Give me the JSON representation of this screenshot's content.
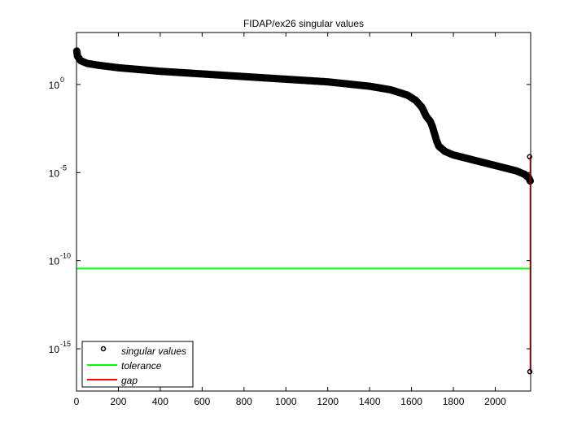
{
  "chart_data": {
    "type": "scatter",
    "title": "FIDAP/ex26 singular values",
    "xlabel": "",
    "ylabel": "",
    "xscale": "linear",
    "yscale": "log",
    "xlim": [
      0,
      2169
    ],
    "ylim_log10": [
      -17.4,
      2.95
    ],
    "xticks": [
      0,
      200,
      400,
      600,
      800,
      1000,
      1200,
      1400,
      1600,
      1800,
      2000
    ],
    "xtick_labels": [
      "0",
      "200",
      "400",
      "600",
      "800",
      "1000",
      "1200",
      "1400",
      "1600",
      "1800",
      "2000"
    ],
    "yticks_log10": [
      0,
      -5,
      -10,
      -15
    ],
    "ytick_labels": [
      {
        "base": "10",
        "exp": "0"
      },
      {
        "base": "10",
        "exp": "-5"
      },
      {
        "base": "10",
        "exp": "-10"
      },
      {
        "base": "10",
        "exp": "-15"
      }
    ],
    "grid": false,
    "legend_position": "lower left",
    "legend": [
      {
        "label": "singular values",
        "marker": "circle",
        "color": "#000000"
      },
      {
        "label": "tolerance",
        "marker": "line",
        "color": "#00ff00"
      },
      {
        "label": "gap",
        "marker": "line",
        "color": "#ff0000"
      }
    ],
    "series": [
      {
        "name": "singular values",
        "color": "#000000",
        "marker": "circle",
        "x": [
          1,
          5,
          20,
          50,
          100,
          200,
          400,
          600,
          800,
          1000,
          1200,
          1400,
          1500,
          1580,
          1620,
          1650,
          1670,
          1690,
          1700,
          1710,
          1720,
          1730,
          1760,
          1800,
          1900,
          2000,
          2100,
          2140,
          2160,
          2168,
          2169
        ],
        "log10_y": [
          1.9,
          1.6,
          1.35,
          1.2,
          1.1,
          0.95,
          0.75,
          0.6,
          0.45,
          0.3,
          0.15,
          -0.1,
          -0.3,
          -0.6,
          -0.9,
          -1.3,
          -1.8,
          -2.1,
          -2.4,
          -2.8,
          -3.2,
          -3.5,
          -3.8,
          -4.0,
          -4.3,
          -4.6,
          -4.9,
          -5.1,
          -5.3,
          -5.5,
          -16.3
        ]
      },
      {
        "name": "tolerance",
        "color": "#00ff00",
        "x": [
          0,
          2169
        ],
        "log10_y": [
          -10.45,
          -10.45
        ]
      },
      {
        "name": "gap",
        "color": "#ff0000",
        "x": [
          2168,
          2168
        ],
        "log10_y": [
          -4.1,
          -16.3
        ]
      }
    ]
  },
  "figure": {
    "title": "FIDAP/ex26 singular values",
    "legend_labels": {
      "singular": "singular values",
      "tolerance": "tolerance",
      "gap": "gap"
    },
    "colors": {
      "axes": "#000000",
      "tolerance": "#00ff00",
      "gap": "#ff0000",
      "markers": "#000000"
    }
  }
}
